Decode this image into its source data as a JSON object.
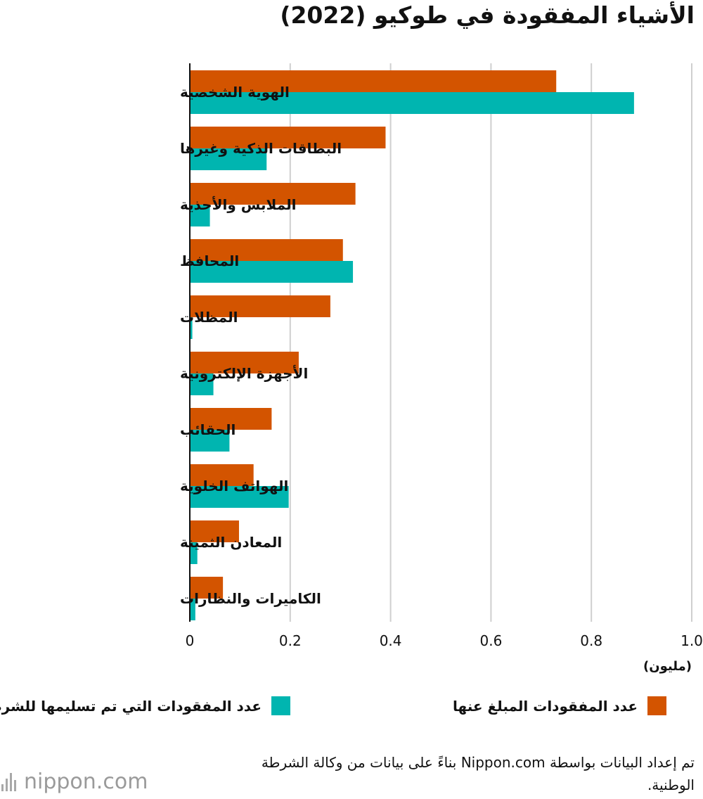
{
  "chart_data": {
    "type": "bar",
    "orientation": "horizontal",
    "title": "الأشياء المفقودة في طوكيو (2022)",
    "categories": [
      "الهوية الشخصية",
      "البطاقات الذكية وغيرها",
      "الملابس والأحذية",
      "المحافظ",
      "المظلات",
      "الأجهزة الإلكترونية",
      "الحقائب",
      "الهواتف الخلوية",
      "المعادن الثمينة",
      "الكاميرات والنظارات"
    ],
    "series": [
      {
        "name": "عدد المفقودات المبلغ عنها",
        "color": "#d35400",
        "values": [
          0.73,
          0.39,
          0.33,
          0.305,
          0.28,
          0.217,
          0.163,
          0.127,
          0.098,
          0.066
        ]
      },
      {
        "name": "عدد المفقودات التي تم تسليمها للشرطة",
        "color": "#00b5b0",
        "values": [
          0.885,
          0.153,
          0.04,
          0.325,
          0.005,
          0.047,
          0.079,
          0.197,
          0.015,
          0.011
        ]
      }
    ],
    "xlim": [
      0,
      1.0
    ],
    "xticks": [
      "0",
      "0.2",
      "0.4",
      "0.6",
      "0.8",
      "1.0"
    ],
    "unit_label": "(مليون)",
    "grid": true,
    "legend_position": "bottom"
  },
  "source_note": "تم إعداد البيانات بواسطة Nippon.com بناءً على بيانات من وكالة الشرطة الوطنية.",
  "logo_text": "nippon.com"
}
